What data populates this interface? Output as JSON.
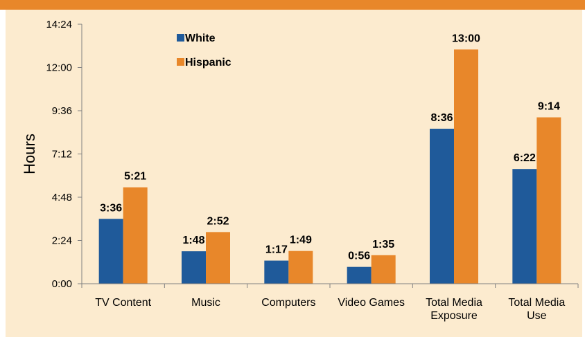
{
  "colors": {
    "band": "#e8872a",
    "panel": "#fcebcf",
    "white_series": "#1f5a9a",
    "hispanic_series": "#e8872a",
    "axis": "#808080"
  },
  "chart_data": {
    "type": "bar",
    "title": "",
    "xlabel": "",
    "ylabel": "Hours",
    "categories": [
      [
        "TV Content"
      ],
      [
        "Music"
      ],
      [
        "Computers"
      ],
      [
        "Video Games"
      ],
      [
        "Total Media",
        "Exposure"
      ],
      [
        "Total Media",
        "Use"
      ]
    ],
    "y_ticks": [
      "0:00",
      "2:24",
      "4:48",
      "7:12",
      "9:36",
      "12:00",
      "14:24"
    ],
    "ylim_minutes": [
      0,
      864
    ],
    "y_tick_step_minutes": 144,
    "grid": false,
    "legend_position": "top-left",
    "series": [
      {
        "name": "White",
        "color": "#1f5a9a",
        "labels": [
          "3:36",
          "1:48",
          "1:17",
          "0:56",
          "8:36",
          "6:22"
        ],
        "values_minutes": [
          216,
          108,
          77,
          56,
          516,
          382
        ]
      },
      {
        "name": "Hispanic",
        "color": "#e8872a",
        "labels": [
          "5:21",
          "2:52",
          "1:49",
          "1:35",
          "13:00",
          "9:14"
        ],
        "values_minutes": [
          321,
          172,
          109,
          95,
          780,
          554
        ]
      }
    ]
  }
}
